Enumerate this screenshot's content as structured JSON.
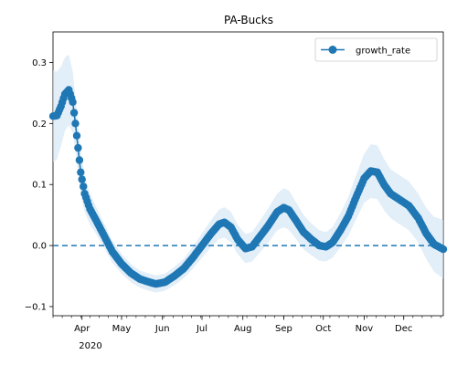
{
  "chart_data": {
    "type": "line",
    "title": "PA-Bucks",
    "xlabel": "",
    "ylabel": "",
    "x_start": "2020-03-10",
    "x_end": "2020-12-31",
    "xlim": [
      "2020-03-10",
      "2020-12-31"
    ],
    "ylim": [
      -0.115,
      0.35
    ],
    "y_ticks": [
      -0.1,
      0.0,
      0.1,
      0.2,
      0.3
    ],
    "y_tick_labels": [
      "−0.1",
      "0.0",
      "0.1",
      "0.2",
      "0.3"
    ],
    "x_tick_labels": [
      {
        "date": "2020-04-01",
        "label": "Apr"
      },
      {
        "date": "2020-05-01",
        "label": "May"
      },
      {
        "date": "2020-06-01",
        "label": "Jun"
      },
      {
        "date": "2020-07-01",
        "label": "Jul"
      },
      {
        "date": "2020-08-01",
        "label": "Aug"
      },
      {
        "date": "2020-09-01",
        "label": "Sep"
      },
      {
        "date": "2020-10-01",
        "label": "Oct"
      },
      {
        "date": "2020-11-01",
        "label": "Nov"
      },
      {
        "date": "2020-12-01",
        "label": "Dec"
      }
    ],
    "x_year_label": "2020",
    "legend_position": "upper-right",
    "series": [
      {
        "name": "growth_rate",
        "color": "#1f77b4",
        "band_color": "#cfe2f3",
        "points": [
          [
            "2020-03-10",
            0.212
          ],
          [
            "2020-03-13",
            0.213
          ],
          [
            "2020-03-16",
            0.228
          ],
          [
            "2020-03-19",
            0.248
          ],
          [
            "2020-03-22",
            0.255
          ],
          [
            "2020-03-25",
            0.235
          ],
          [
            "2020-03-27",
            0.2
          ],
          [
            "2020-03-29",
            0.16
          ],
          [
            "2020-03-31",
            0.12
          ],
          [
            "2020-04-03",
            0.085
          ],
          [
            "2020-04-07",
            0.06
          ],
          [
            "2020-04-12",
            0.04
          ],
          [
            "2020-04-18",
            0.015
          ],
          [
            "2020-04-24",
            -0.01
          ],
          [
            "2020-05-01",
            -0.03
          ],
          [
            "2020-05-08",
            -0.045
          ],
          [
            "2020-05-15",
            -0.055
          ],
          [
            "2020-05-22",
            -0.06
          ],
          [
            "2020-05-27",
            -0.063
          ],
          [
            "2020-06-03",
            -0.06
          ],
          [
            "2020-06-10",
            -0.05
          ],
          [
            "2020-06-17",
            -0.038
          ],
          [
            "2020-06-24",
            -0.02
          ],
          [
            "2020-07-01",
            0.0
          ],
          [
            "2020-07-08",
            0.02
          ],
          [
            "2020-07-14",
            0.035
          ],
          [
            "2020-07-18",
            0.038
          ],
          [
            "2020-07-23",
            0.03
          ],
          [
            "2020-07-28",
            0.01
          ],
          [
            "2020-08-03",
            -0.005
          ],
          [
            "2020-08-08",
            -0.002
          ],
          [
            "2020-08-14",
            0.015
          ],
          [
            "2020-08-20",
            0.032
          ],
          [
            "2020-08-27",
            0.055
          ],
          [
            "2020-09-01",
            0.062
          ],
          [
            "2020-09-05",
            0.058
          ],
          [
            "2020-09-10",
            0.042
          ],
          [
            "2020-09-16",
            0.022
          ],
          [
            "2020-09-22",
            0.01
          ],
          [
            "2020-09-28",
            0.0
          ],
          [
            "2020-10-03",
            -0.002
          ],
          [
            "2020-10-08",
            0.005
          ],
          [
            "2020-10-14",
            0.025
          ],
          [
            "2020-10-20",
            0.048
          ],
          [
            "2020-10-26",
            0.08
          ],
          [
            "2020-11-01",
            0.11
          ],
          [
            "2020-11-06",
            0.122
          ],
          [
            "2020-11-11",
            0.12
          ],
          [
            "2020-11-16",
            0.1
          ],
          [
            "2020-11-21",
            0.085
          ],
          [
            "2020-11-28",
            0.075
          ],
          [
            "2020-12-05",
            0.065
          ],
          [
            "2020-12-12",
            0.045
          ],
          [
            "2020-12-18",
            0.02
          ],
          [
            "2020-12-24",
            0.002
          ],
          [
            "2020-12-31",
            -0.006
          ]
        ],
        "band_halfwidth": [
          0.075,
          0.072,
          0.065,
          0.06,
          0.058,
          0.05,
          0.045,
          0.04,
          0.036,
          0.03,
          0.026,
          0.022,
          0.02,
          0.018,
          0.016,
          0.015,
          0.014,
          0.014,
          0.014,
          0.014,
          0.015,
          0.016,
          0.018,
          0.02,
          0.022,
          0.024,
          0.025,
          0.025,
          0.024,
          0.024,
          0.024,
          0.026,
          0.028,
          0.03,
          0.032,
          0.032,
          0.03,
          0.028,
          0.026,
          0.025,
          0.024,
          0.025,
          0.028,
          0.032,
          0.036,
          0.04,
          0.044,
          0.044,
          0.042,
          0.04,
          0.04,
          0.04,
          0.04,
          0.042,
          0.045,
          0.048
        ]
      }
    ],
    "reference_line": {
      "y": 0.0,
      "style": "dashed",
      "color": "#1f77b4"
    }
  }
}
